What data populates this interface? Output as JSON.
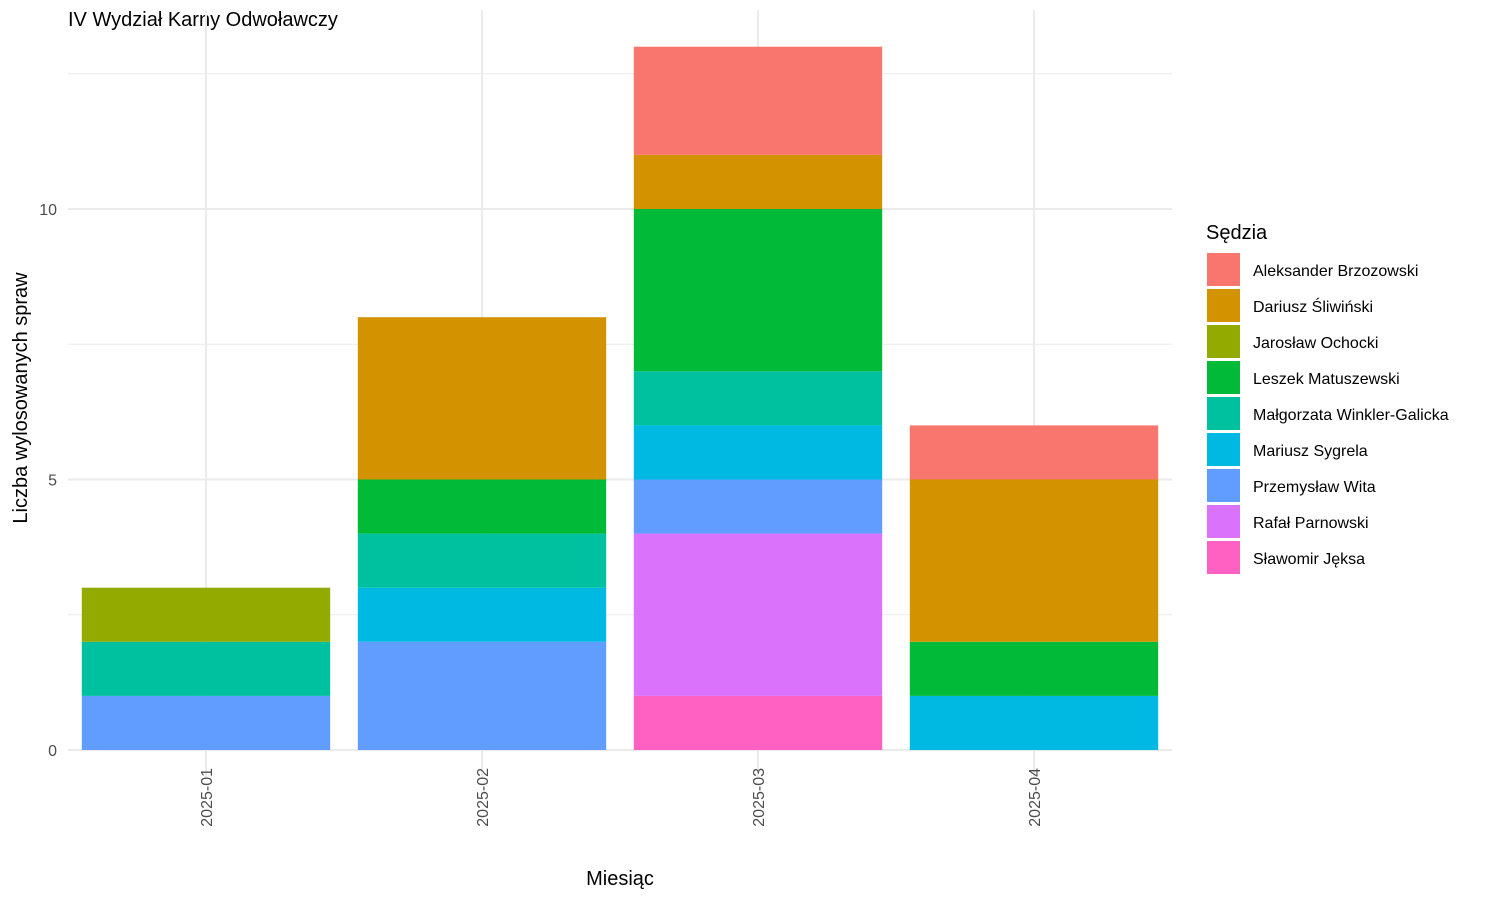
{
  "chart_data": {
    "type": "bar",
    "stacked": true,
    "title": "IV Wydział Karny Odwoławczy",
    "xlabel": "Miesiąc",
    "ylabel": "Liczba wylosowanych spraw",
    "categories": [
      "2025-01",
      "2025-02",
      "2025-03",
      "2025-04"
    ],
    "ylim": [
      0,
      13
    ],
    "yticks": [
      0,
      5,
      10
    ],
    "grid": true,
    "legend": {
      "title": "Sędzia",
      "position": "right"
    },
    "series": [
      {
        "name": "Aleksander Brzozowski",
        "color": "#F8766D",
        "values": [
          0,
          0,
          2,
          1
        ]
      },
      {
        "name": "Dariusz Śliwiński",
        "color": "#D39200",
        "values": [
          0,
          3,
          1,
          3
        ]
      },
      {
        "name": "Jarosław Ochocki",
        "color": "#93AA00",
        "values": [
          1,
          0,
          0,
          0
        ]
      },
      {
        "name": "Leszek Matuszewski",
        "color": "#00BA38",
        "values": [
          0,
          1,
          3,
          1
        ]
      },
      {
        "name": "Małgorzata Winkler-Galicka",
        "color": "#00C19F",
        "values": [
          1,
          1,
          1,
          0
        ]
      },
      {
        "name": "Mariusz Sygrela",
        "color": "#00B9E3",
        "values": [
          0,
          1,
          1,
          1
        ]
      },
      {
        "name": "Przemysław Wita",
        "color": "#619CFF",
        "values": [
          1,
          2,
          1,
          0
        ]
      },
      {
        "name": "Rafał Parnowski",
        "color": "#DB72FB",
        "values": [
          0,
          0,
          3,
          0
        ]
      },
      {
        "name": "Sławomir Jęksa",
        "color": "#FF61C3",
        "values": [
          0,
          0,
          1,
          0
        ]
      }
    ]
  }
}
